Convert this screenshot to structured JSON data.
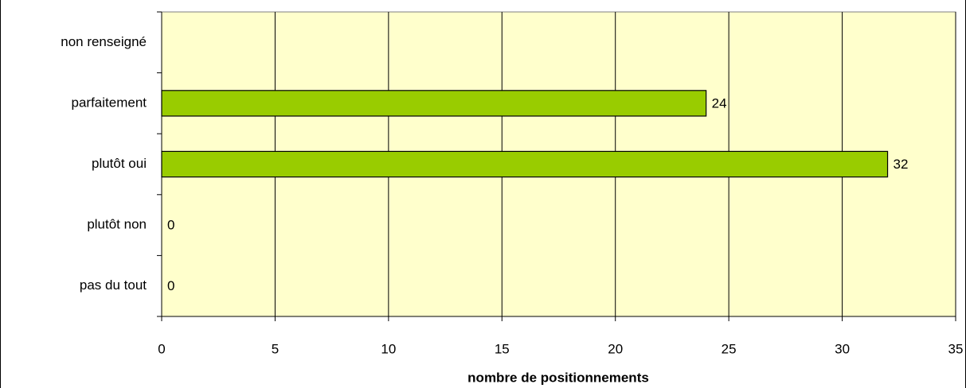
{
  "chart_data": {
    "type": "bar",
    "orientation": "horizontal",
    "x_label": "nombre de positionnements",
    "categories": [
      "pas du tout",
      "plutôt non",
      "plutôt oui",
      "parfaitement",
      "non renseigné"
    ],
    "values": [
      0,
      0,
      32,
      24,
      null
    ],
    "color": "#99cc00",
    "xlim": [
      0,
      35
    ],
    "xticks": [
      0,
      5,
      10,
      15,
      20,
      25,
      30,
      35
    ],
    "grid": true
  }
}
